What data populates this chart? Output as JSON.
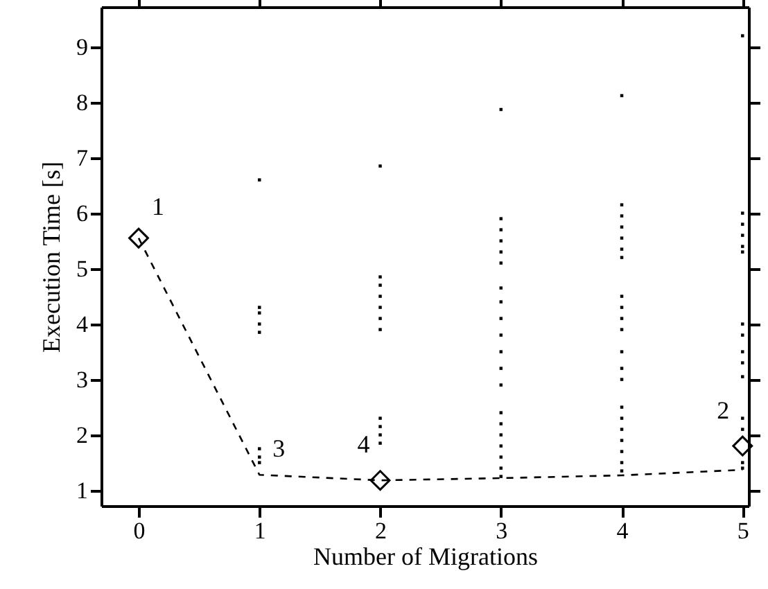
{
  "chart_data": {
    "type": "scatter",
    "xlabel": "Number of Migrations",
    "ylabel": "Execution Time [s]",
    "xlim": [
      -0.31,
      5.05
    ],
    "xticks": [
      0,
      1,
      2,
      3,
      4,
      5
    ],
    "ylim": [
      0.72,
      9.72
    ],
    "yticks": [
      1,
      2,
      3,
      4,
      5,
      6,
      7,
      8,
      9
    ],
    "grid": false,
    "series": [
      {
        "marker": "square",
        "color": "#000000",
        "x": [
          1,
          1,
          1,
          1,
          1,
          1,
          1,
          1,
          2,
          2,
          2,
          2,
          2,
          2,
          2,
          2,
          2,
          2,
          2,
          3,
          3,
          3,
          3,
          3,
          3,
          3,
          3,
          3,
          3,
          3,
          3,
          3,
          3,
          3,
          3,
          3,
          3,
          3,
          3,
          4,
          4,
          4,
          4,
          4,
          4,
          4,
          4,
          4,
          4,
          4,
          4,
          4,
          4,
          4,
          4,
          4,
          4,
          4,
          4,
          4,
          5,
          5,
          5,
          5,
          5,
          5,
          5,
          5,
          5,
          5,
          5,
          5,
          5,
          5,
          5
        ],
        "values": [
          6.6,
          4.3,
          4.2,
          4.0,
          3.85,
          1.75,
          1.6,
          1.5,
          6.85,
          4.85,
          4.7,
          4.5,
          4.3,
          4.1,
          3.9,
          2.3,
          2.15,
          2.0,
          1.85,
          7.87,
          5.9,
          5.7,
          5.5,
          5.3,
          5.1,
          4.65,
          4.4,
          4.1,
          3.8,
          3.5,
          3.2,
          2.9,
          2.4,
          2.2,
          2.0,
          1.8,
          1.6,
          1.4,
          1.25,
          8.12,
          6.15,
          5.95,
          5.75,
          5.55,
          5.35,
          5.2,
          4.5,
          4.3,
          4.1,
          3.9,
          3.5,
          3.2,
          3.0,
          2.5,
          2.3,
          2.1,
          1.9,
          1.7,
          1.5,
          1.35,
          9.2,
          6.0,
          5.8,
          5.6,
          5.4,
          5.3,
          4.0,
          3.8,
          3.5,
          3.3,
          3.05,
          2.3,
          2.1,
          1.5,
          1.4
        ]
      },
      {
        "type": "line",
        "line_style": "dashed",
        "marker": "none",
        "color": "#000000",
        "x": [
          0,
          1,
          2,
          3,
          4,
          5
        ],
        "values": [
          5.55,
          1.28,
          1.18,
          1.22,
          1.27,
          1.37
        ]
      },
      {
        "marker": "diamond",
        "color": "#000000",
        "x": [
          0,
          2,
          5
        ],
        "values": [
          5.55,
          1.18,
          1.8
        ]
      }
    ],
    "annotations": [
      {
        "text": "1",
        "x": 0,
        "y": 5.55
      },
      {
        "text": "3",
        "x": 1,
        "y": 1.28
      },
      {
        "text": "4",
        "x": 2,
        "y": 1.18
      },
      {
        "text": "2",
        "x": 5,
        "y": 1.8
      }
    ]
  }
}
